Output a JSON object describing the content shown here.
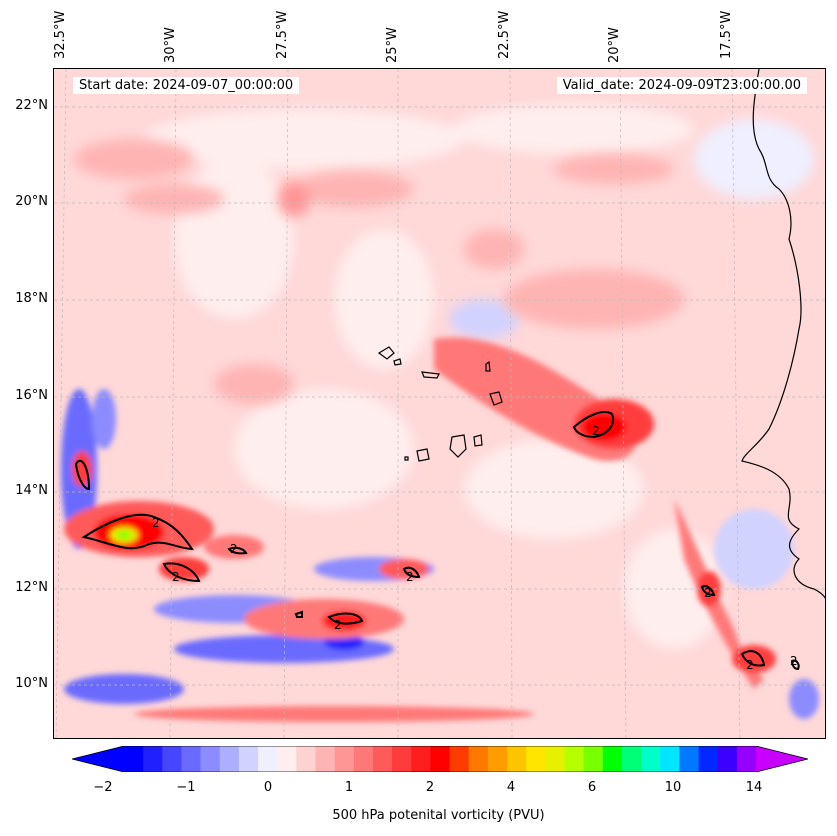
{
  "header": {
    "start_date": "Start date: 2024-09-07_00:00:00",
    "valid_date": "Valid_date: 2024-09-09T23:00:00.00"
  },
  "longitude_labels": [
    "32.5°W",
    "30°W",
    "27.5°W",
    "25°W",
    "22.5°W",
    "20°W",
    "17.5°W"
  ],
  "latitude_labels": [
    "22°N",
    "20°N",
    "18°N",
    "16°N",
    "14°N",
    "12°N",
    "10°N"
  ],
  "contour_label": "2",
  "colorbar": {
    "title": "500 hPa potenital vorticity (PVU)",
    "ticks": [
      "−2",
      "−1",
      "0",
      "1",
      "2",
      "4",
      "6",
      "10",
      "14"
    ],
    "colors": [
      "#0000ff",
      "#2020ff",
      "#4646ff",
      "#6a6aff",
      "#8c8cff",
      "#aeaeff",
      "#d2d2ff",
      "#efefff",
      "#ffeeee",
      "#ffd2d2",
      "#ffb4b4",
      "#ff9696",
      "#ff7878",
      "#ff5a5a",
      "#ff3c3c",
      "#ff1e1e",
      "#ff0000",
      "#ff3c00",
      "#ff7800",
      "#ff9c00",
      "#ffc400",
      "#ffe600",
      "#e6f000",
      "#b4ff00",
      "#78ff00",
      "#00ff00",
      "#00ff78",
      "#00ffc8",
      "#00e6ff",
      "#0078ff",
      "#0028ff",
      "#3c00ff",
      "#9600ff"
    ],
    "under_color": "#0000ff",
    "over_color": "#c800ff"
  }
}
